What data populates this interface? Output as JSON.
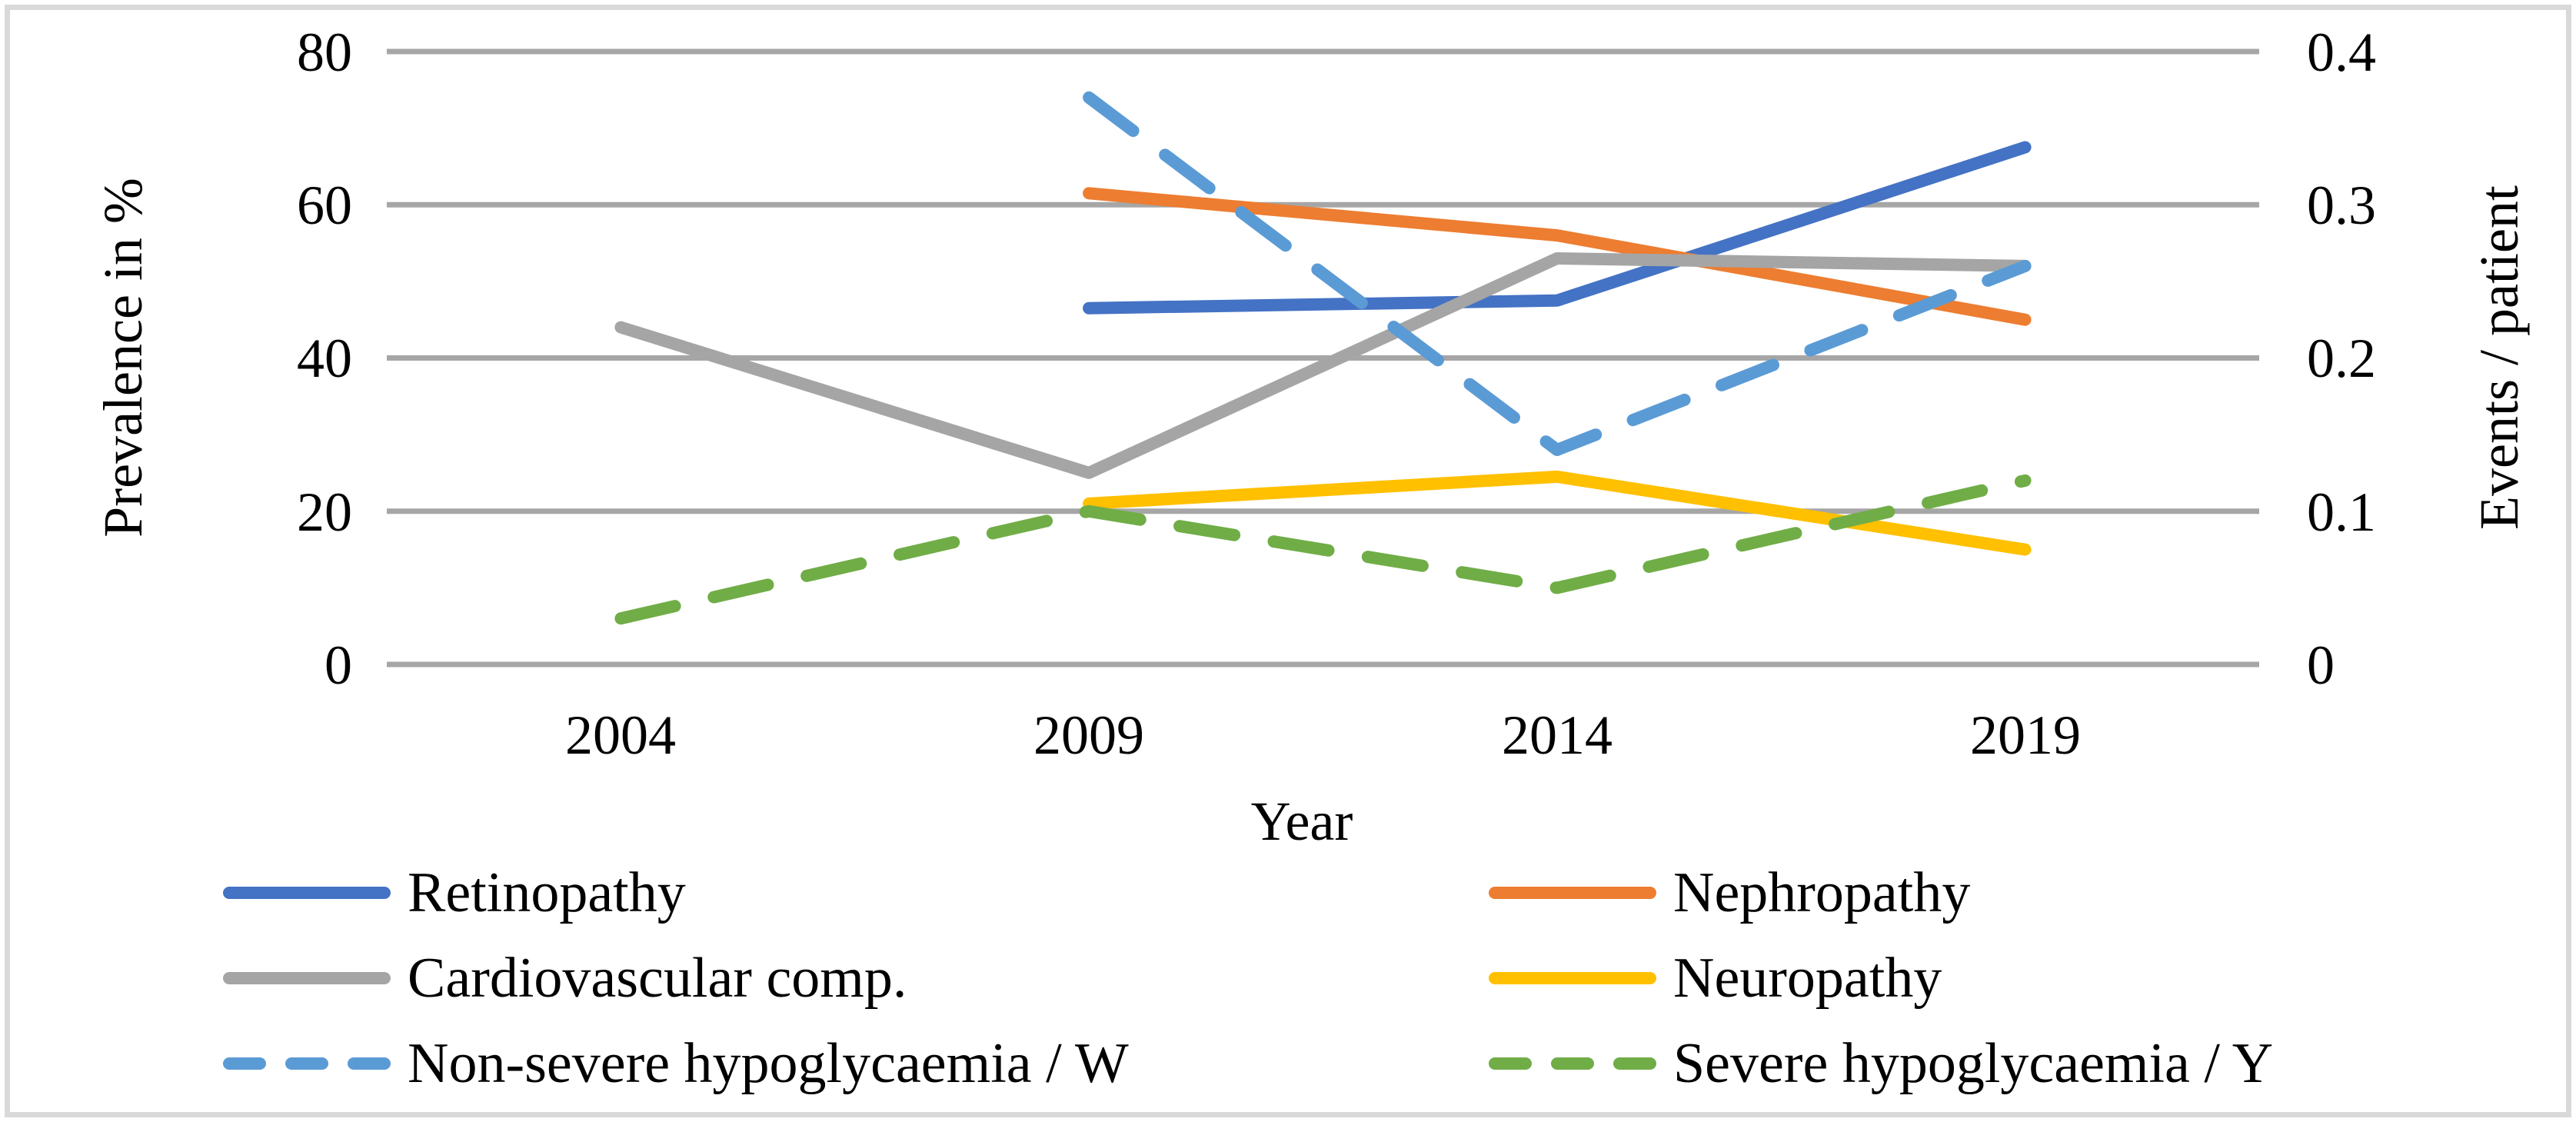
{
  "figure": {
    "left_axis": {
      "title": "Prevalence in %",
      "ticks": [
        "80",
        "60",
        "40",
        "20",
        "0"
      ]
    },
    "right_axis": {
      "title": "Events / patient",
      "ticks": [
        "0.4",
        "0.3",
        "0.2",
        "0.1",
        "0"
      ]
    },
    "x_axis": {
      "title": "Year",
      "ticks": [
        "2004",
        "2009",
        "2014",
        "2019"
      ]
    }
  },
  "chart_data": {
    "type": "line",
    "x": [
      "2004",
      "2009",
      "2014",
      "2019"
    ],
    "xlabel": "Year",
    "ylabel_left": "Prevalence in %",
    "ylabel_right": "Events / patient",
    "ylim_left": [
      0,
      80
    ],
    "ylim_right": [
      0,
      0.4
    ],
    "grid": true,
    "legend_position": "bottom",
    "gridline_color": "#A6A6A6",
    "series": [
      {
        "name": "Retinopathy",
        "axis": "left",
        "color": "#4472C4",
        "dash": false,
        "values": [
          null,
          46.5,
          47.5,
          67.5
        ]
      },
      {
        "name": "Nephropathy",
        "axis": "left",
        "color": "#ED7D31",
        "dash": false,
        "values": [
          null,
          61.5,
          56,
          45
        ]
      },
      {
        "name": "Cardiovascular comp.",
        "axis": "left",
        "color": "#A5A5A5",
        "dash": false,
        "values": [
          44,
          25,
          53,
          52
        ]
      },
      {
        "name": "Neuropathy",
        "axis": "left",
        "color": "#FFC000",
        "dash": false,
        "values": [
          null,
          21,
          24.5,
          15
        ]
      },
      {
        "name": "Non-severe hypoglycaemia / W",
        "axis": "right",
        "color": "#5B9BD5",
        "dash": true,
        "values": [
          null,
          0.37,
          0.14,
          0.26
        ]
      },
      {
        "name": "Severe hypoglycaemia / Y",
        "axis": "right",
        "color": "#70AD47",
        "dash": true,
        "values": [
          0.03,
          0.1,
          0.05,
          0.12
        ]
      }
    ]
  }
}
